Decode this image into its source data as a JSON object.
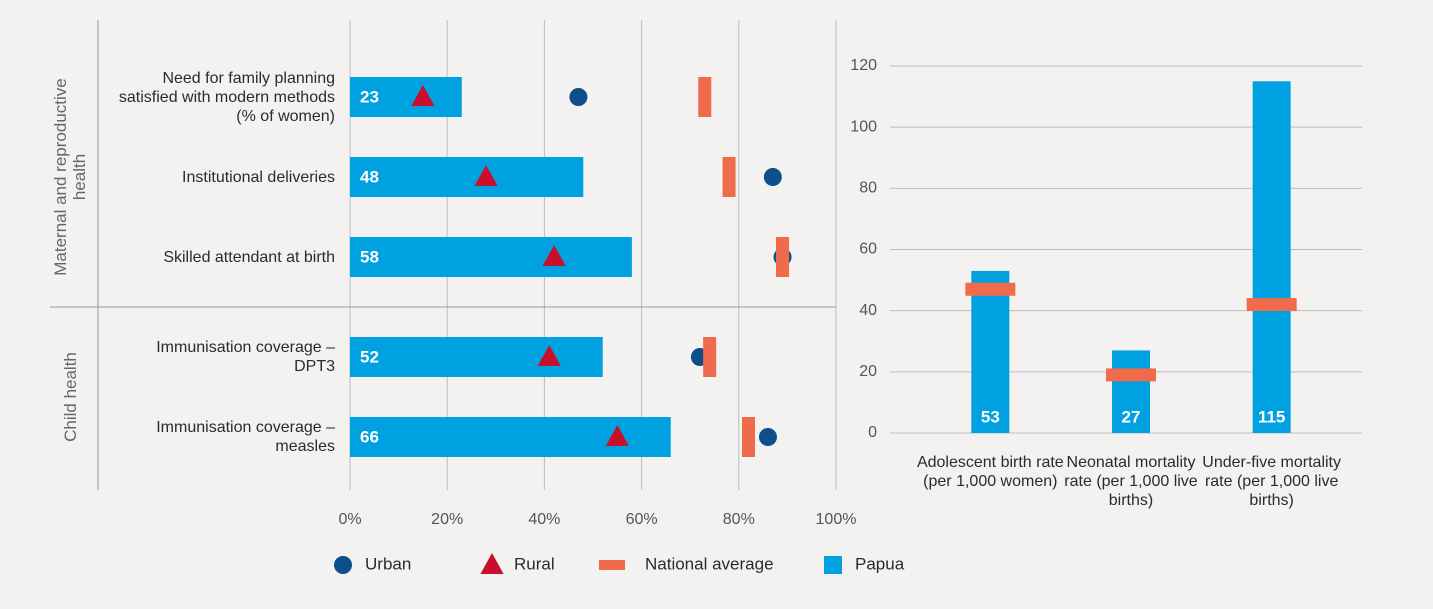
{
  "chart_data": [
    {
      "type": "hbar",
      "groups": [
        {
          "name": "Maternal and reproductive health",
          "categories": [
            "Need for family planning satisfied with modern methods (% of women)",
            "Institutional deliveries",
            "Skilled attendant at birth"
          ]
        },
        {
          "name": "Child health",
          "categories": [
            "Immunisation coverage – DPT3",
            "Immunisation coverage – measles"
          ]
        }
      ],
      "series": [
        {
          "name": "Urban",
          "marker": "circle",
          "color": "#0d4f8b",
          "values": [
            47,
            87,
            89,
            72,
            86
          ]
        },
        {
          "name": "Rural",
          "marker": "triangle",
          "color": "#c8102e",
          "values": [
            15,
            28,
            42,
            41,
            55
          ]
        },
        {
          "name": "National average",
          "marker": "rect",
          "color": "#ef6b4b",
          "values": [
            73,
            78,
            89,
            74,
            82
          ]
        },
        {
          "name": "Papua",
          "marker": "bar",
          "color": "#00a1e0",
          "values": [
            23,
            48,
            58,
            52,
            66
          ]
        }
      ],
      "xlim": [
        0,
        100
      ],
      "xticks": [
        {
          "value": 0,
          "label": "0%"
        },
        {
          "value": 20,
          "label": "20%"
        },
        {
          "value": 40,
          "label": "40%"
        },
        {
          "value": 60,
          "label": "60%"
        },
        {
          "value": 80,
          "label": "80%"
        },
        {
          "value": 100,
          "label": "100%"
        }
      ],
      "grid": true
    },
    {
      "type": "bar",
      "categories": [
        "Adolescent birth rate (per 1,000 women)",
        "Neonatal mortality rate (per 1,000 live births)",
        "Under-five mortality rate (per 1,000 live births)"
      ],
      "series": [
        {
          "marker": "bar",
          "color": "#00a1e0",
          "values": [
            53,
            27,
            115
          ]
        },
        {
          "marker": "rect",
          "color": "#ef6b4b",
          "values": [
            47,
            19,
            42
          ]
        }
      ],
      "ylim": [
        0,
        120
      ],
      "yticks": [
        0,
        20,
        40,
        60,
        80,
        100,
        120
      ],
      "grid": true
    }
  ]
}
